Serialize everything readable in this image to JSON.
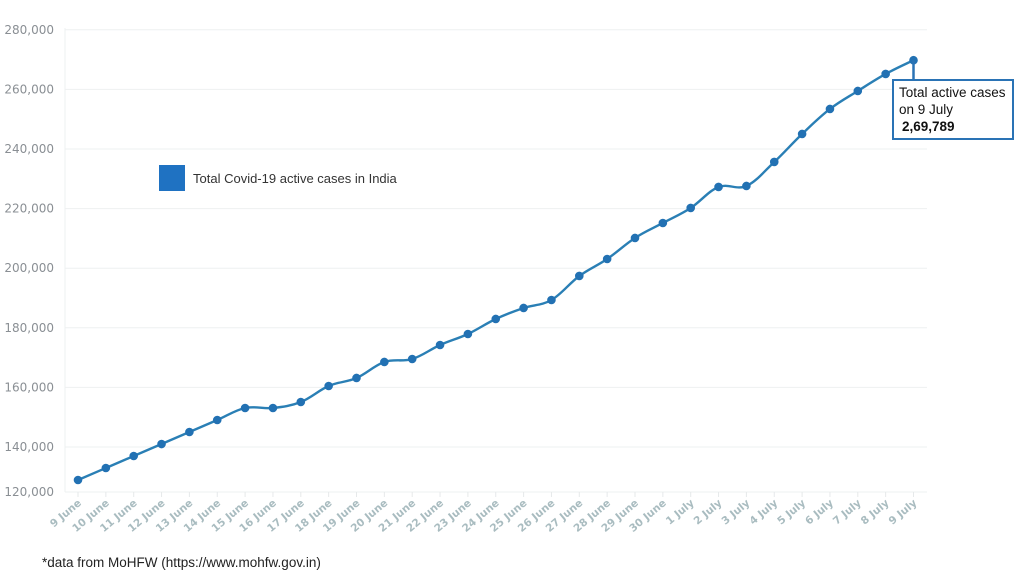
{
  "chart_data": {
    "type": "line",
    "title": "",
    "xlabel": "",
    "ylabel": "",
    "ylim": [
      120000,
      280000
    ],
    "yticks": [
      120000,
      140000,
      160000,
      180000,
      200000,
      220000,
      240000,
      260000,
      280000
    ],
    "ytick_labels": [
      "120,000",
      "140,000",
      "160,000",
      "180,000",
      "200,000",
      "220,000",
      "240,000",
      "260,000",
      "280,000"
    ],
    "grid": true,
    "legend_position": "upper-left (inside)",
    "categories": [
      "9 June",
      "10 June",
      "11 June",
      "12 June",
      "13 June",
      "14 June",
      "15 June",
      "16 June",
      "17 June",
      "18 June",
      "19 June",
      "20 June",
      "21 June",
      "22 June",
      "23 June",
      "24 June",
      "25 June",
      "26 June",
      "27 June",
      "28 June",
      "29 June",
      "30 June",
      "1 July",
      "2 July",
      "3 July",
      "4 July",
      "5 July",
      "6 July",
      "7 July",
      "8 July",
      "9 July"
    ],
    "series": [
      {
        "name": "Total Covid-19 active cases in India",
        "color": "#2a7fb5",
        "values": [
          128925,
          132950,
          136980,
          141000,
          145030,
          149060,
          153090,
          153090,
          155100,
          160470,
          163160,
          168530,
          169530,
          174230,
          177920,
          182960,
          186650,
          189330,
          197390,
          203090,
          210140,
          215170,
          220210,
          227260,
          227590,
          235650,
          245040,
          253430,
          259470,
          265180,
          269789
        ]
      }
    ],
    "annotations": [
      {
        "target": "9 July",
        "text": "Total active cases on 9 July",
        "value": "2,69,789"
      }
    ]
  },
  "legend": {
    "label": "Total Covid-19 active cases in India",
    "swatch_color": "#1f72c2"
  },
  "annotation": {
    "line1": "Total active cases",
    "line2": "on 9 July",
    "value": "2,69,789"
  },
  "footer": {
    "source": "*data from MoHFW (https://www.mohfw.gov.in)"
  }
}
